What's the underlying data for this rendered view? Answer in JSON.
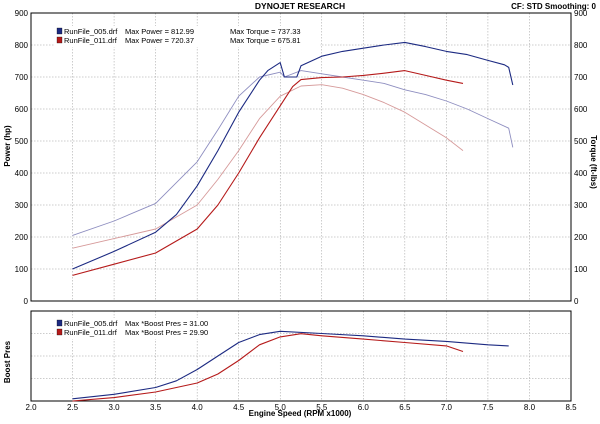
{
  "header": {
    "title": "DYNOJET RESEARCH",
    "status": "CF: STD   Smoothing: 0"
  },
  "colors": {
    "run1": "#1c2a82",
    "run2": "#b51a1a",
    "run1_light": "#8e8ec0",
    "run2_light": "#d69a9a",
    "grid": "#9a9a9a",
    "frame": "#000000",
    "legend_bg": "#ffffff"
  },
  "chart_data": [
    {
      "type": "line",
      "ylabel": "Power (hp)",
      "y2label": "Torque (ft-lbs)",
      "ylim": [
        0,
        900
      ],
      "y2lim": [
        0,
        900
      ],
      "xlim": [
        2.0,
        8.5
      ],
      "yticks": [
        "0",
        "100",
        "200",
        "300",
        "400",
        "500",
        "600",
        "700",
        "800",
        "900"
      ],
      "grid": true,
      "legend_placement": "top-left",
      "legend": [
        {
          "run": "RunFile_005.drf",
          "power_label": "Max Power = 812.99",
          "torque_label": "Max Torque = 737.33"
        },
        {
          "run": "RunFile_011.drf",
          "power_label": "Max Power = 720.37",
          "torque_label": "Max Torque = 675.81"
        }
      ],
      "series": [
        {
          "run": 0,
          "measure": "power",
          "x": [
            2.5,
            3.0,
            3.5,
            3.75,
            4.0,
            4.25,
            4.5,
            4.75,
            4.85,
            5.0,
            5.05,
            5.2,
            5.25,
            5.5,
            5.75,
            6.0,
            6.25,
            6.5,
            6.75,
            7.0,
            7.25,
            7.5,
            7.7,
            7.75,
            7.8
          ],
          "y": [
            100,
            155,
            215,
            270,
            360,
            470,
            590,
            690,
            720,
            745,
            700,
            700,
            735,
            765,
            780,
            790,
            800,
            808,
            795,
            780,
            770,
            752,
            738,
            730,
            675
          ]
        },
        {
          "run": 0,
          "measure": "torque",
          "x": [
            2.5,
            3.0,
            3.5,
            4.0,
            4.25,
            4.5,
            4.75,
            5.0,
            5.05,
            5.25,
            5.5,
            5.75,
            6.0,
            6.25,
            6.5,
            6.75,
            7.0,
            7.25,
            7.5,
            7.75,
            7.8
          ],
          "y": [
            205,
            250,
            305,
            435,
            535,
            640,
            700,
            715,
            700,
            720,
            710,
            700,
            690,
            680,
            660,
            645,
            625,
            600,
            570,
            540,
            480
          ]
        },
        {
          "run": 1,
          "measure": "power",
          "x": [
            2.5,
            3.0,
            3.5,
            4.0,
            4.25,
            4.5,
            4.75,
            5.0,
            5.15,
            5.25,
            5.5,
            5.75,
            6.0,
            6.25,
            6.5,
            6.75,
            7.0,
            7.2
          ],
          "y": [
            80,
            115,
            150,
            225,
            300,
            400,
            510,
            610,
            670,
            692,
            698,
            700,
            705,
            712,
            720,
            705,
            690,
            680
          ]
        },
        {
          "run": 1,
          "measure": "torque",
          "x": [
            2.5,
            3.0,
            3.5,
            4.0,
            4.25,
            4.5,
            4.75,
            5.0,
            5.25,
            5.5,
            5.75,
            6.0,
            6.25,
            6.5,
            6.75,
            7.0,
            7.2
          ],
          "y": [
            165,
            195,
            225,
            300,
            380,
            470,
            570,
            640,
            672,
            676,
            665,
            645,
            620,
            590,
            550,
            510,
            470
          ]
        }
      ]
    },
    {
      "type": "line",
      "ylabel": "Boost Pres",
      "xlabel": "Engine Speed (RPM x1000)",
      "xlim": [
        2.0,
        8.5
      ],
      "ylim": [
        0,
        40
      ],
      "xticks": [
        "2.0",
        "2.5",
        "3.0",
        "3.5",
        "4.0",
        "4.5",
        "5.0",
        "5.5",
        "6.0",
        "6.5",
        "7.0",
        "7.5",
        "8.0",
        "8.5"
      ],
      "grid": true,
      "legend_placement": "top-left",
      "legend": [
        {
          "run": "RunFile_005.drf",
          "label": "Max *Boost Pres = 31.00"
        },
        {
          "run": "RunFile_011.drf",
          "label": "Max *Boost Pres = 29.90"
        }
      ],
      "series": [
        {
          "run": 0,
          "x": [
            2.5,
            3.0,
            3.5,
            3.75,
            4.0,
            4.25,
            4.5,
            4.75,
            5.0,
            5.5,
            6.0,
            6.5,
            7.0,
            7.5,
            7.75
          ],
          "y": [
            1,
            3,
            6,
            9,
            14,
            20,
            26,
            29.5,
            31,
            30,
            29,
            27.5,
            26.5,
            25,
            24.5
          ]
        },
        {
          "run": 1,
          "x": [
            2.5,
            3.0,
            3.5,
            4.0,
            4.25,
            4.5,
            4.75,
            5.0,
            5.25,
            5.5,
            6.0,
            6.5,
            7.0,
            7.2
          ],
          "y": [
            0,
            1.5,
            4,
            8,
            12,
            18,
            25,
            28.5,
            29.9,
            29,
            27.5,
            26,
            24.5,
            22
          ]
        }
      ]
    }
  ]
}
